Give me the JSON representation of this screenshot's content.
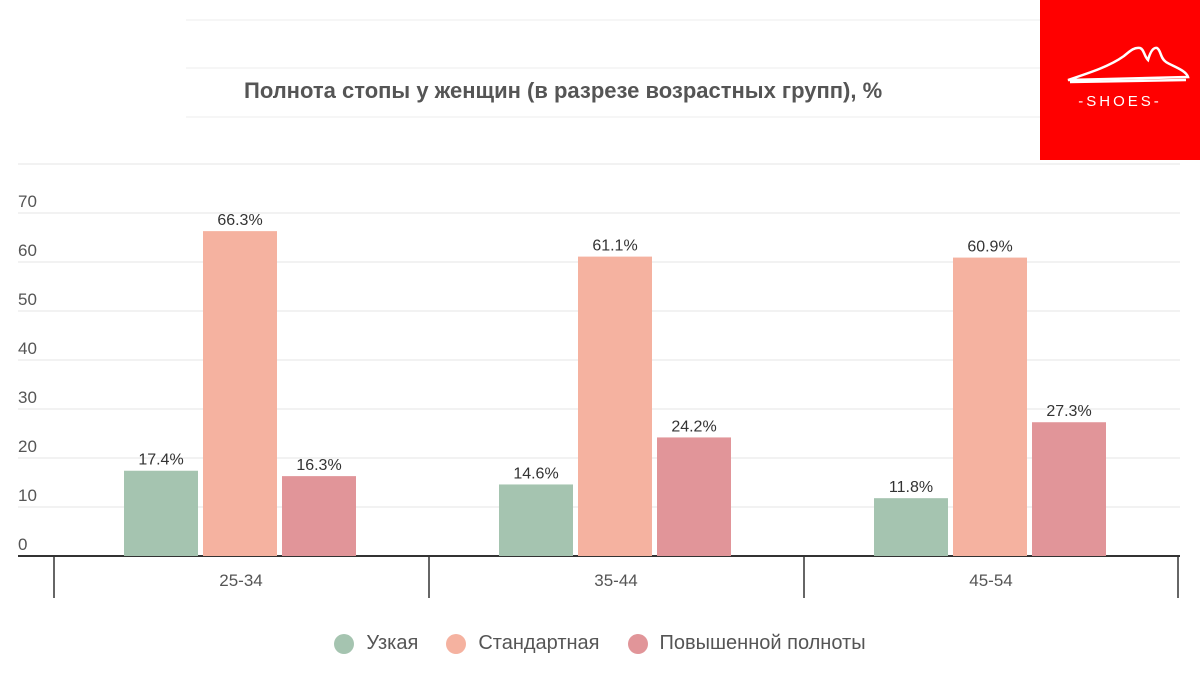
{
  "logo": {
    "text": "-SHOES-"
  },
  "colors": {
    "narrow": "#a5c4b0",
    "standard": "#f5b2a0",
    "wide": "#e19599",
    "logo_bg": "#ff0000"
  },
  "chart_data": {
    "type": "bar",
    "title": "Полнота стопы у женщин (в разрезе возрастных групп), %",
    "xlabel": "",
    "ylabel": "",
    "categories": [
      "25-34",
      "35-44",
      "45-54"
    ],
    "series": [
      {
        "name": "Узкая",
        "color": "#a5c4b0",
        "values": [
          17.4,
          14.6,
          11.8
        ],
        "labels": [
          "17.4%",
          "14.6%",
          "11.8%"
        ]
      },
      {
        "name": "Стандартная",
        "color": "#f5b2a0",
        "values": [
          66.3,
          61.1,
          60.9
        ],
        "labels": [
          "66.3%",
          "61.1%",
          "60.9%"
        ]
      },
      {
        "name": "Повышенной полноты",
        "color": "#e19599",
        "values": [
          16.3,
          24.2,
          27.3
        ],
        "labels": [
          "16.3%",
          "24.2%",
          "27.3%"
        ]
      }
    ],
    "yticks": [
      0,
      10,
      20,
      30,
      40,
      50,
      60,
      70
    ],
    "ylim": [
      0,
      80
    ],
    "grid": true,
    "legend_position": "bottom"
  }
}
